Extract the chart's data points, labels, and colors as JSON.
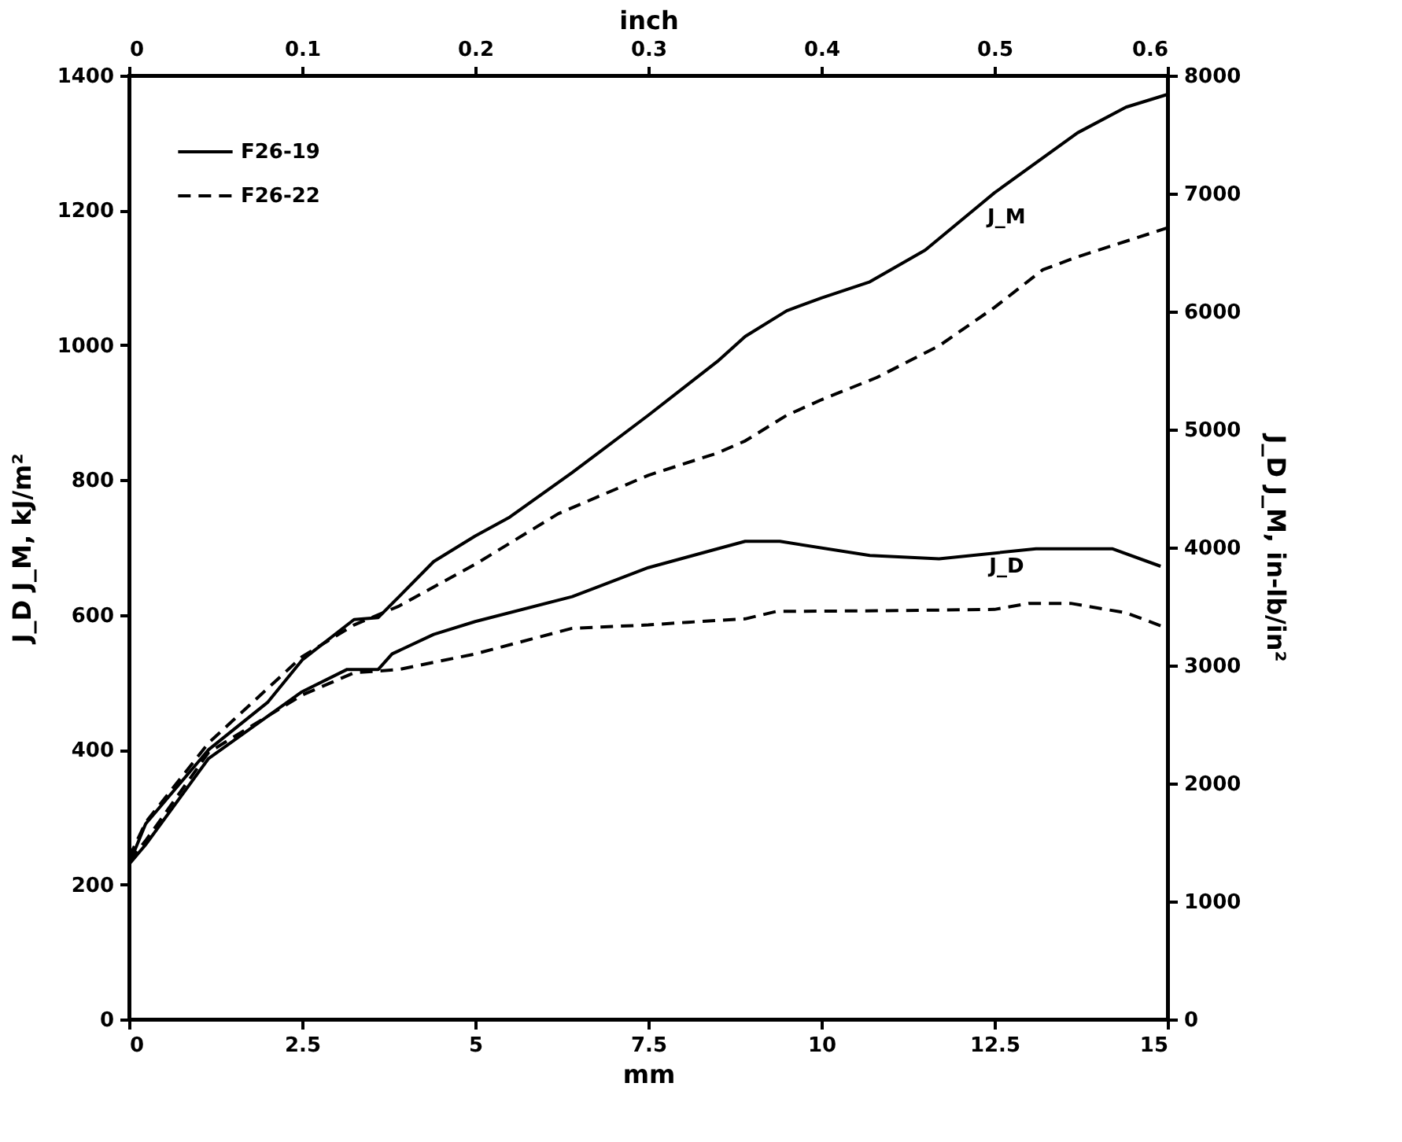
{
  "chart_data": {
    "type": "line",
    "xlabel": "mm",
    "x2label": "inch",
    "ylabel": "J_D J_M, kJ/m²",
    "y2label": "J_D J_M, in-lb/in²",
    "xlim": [
      0,
      15
    ],
    "xticks": [
      0,
      2.5,
      5,
      7.5,
      10,
      12.5,
      15
    ],
    "x2lim": [
      0,
      0.6
    ],
    "x2ticks": [
      0,
      0.1,
      0.2,
      0.3,
      0.4,
      0.5,
      0.6
    ],
    "ylim": [
      0,
      1400
    ],
    "yticks": [
      0,
      200,
      400,
      600,
      800,
      1000,
      1200,
      1400
    ],
    "y2lim": [
      0,
      8000
    ],
    "y2ticks": [
      0,
      1000,
      2000,
      3000,
      4000,
      5000,
      6000,
      7000,
      8000
    ],
    "grid": false,
    "legend": "top left",
    "marker": "none",
    "series": [
      {
        "name": "F26-19",
        "color": "#000000",
        "line_style": "solid",
        "x": [
          0,
          0.24,
          1.15,
          2.0,
          2.5,
          3.25,
          3.6,
          3.9,
          4.4,
          5,
          5.5,
          6.4,
          7.5,
          8.5,
          8.9,
          9.5,
          10,
          10.7,
          11.5,
          12.5,
          13.7,
          14.4,
          15
        ],
        "values": [
          230,
          290,
          400,
          470,
          533,
          593,
          596,
          627,
          679,
          717,
          745,
          811,
          896,
          976,
          1013,
          1051,
          1070,
          1094,
          1141,
          1226,
          1315,
          1353,
          1372
        ]
      },
      {
        "name": "F26-22",
        "color": "#000000",
        "line_style": "dashed",
        "x": [
          0,
          0.24,
          1.15,
          2.5,
          3.25,
          3.9,
          5,
          6.2,
          7.5,
          8.5,
          8.9,
          9.5,
          10,
          10.8,
          11.7,
          12.5,
          13.2,
          13.7,
          15
        ],
        "values": [
          240,
          292,
          410,
          538,
          585,
          613,
          675,
          750,
          807,
          840,
          858,
          896,
          919,
          952,
          999,
          1056,
          1112,
          1131,
          1174
        ]
      },
      {
        "color": "#000000",
        "line_style": "solid",
        "x": [
          0,
          0.24,
          1.15,
          2.5,
          3.15,
          3.6,
          3.8,
          4.4,
          5,
          6.4,
          7.5,
          8.5,
          8.9,
          9.4,
          10.7,
          11.7,
          13.1,
          14.2,
          14.9
        ],
        "values": [
          230,
          259,
          387,
          486,
          519,
          519,
          542,
          571,
          590,
          627,
          670,
          698,
          709,
          709,
          688,
          683,
          698,
          698,
          672
        ]
      },
      {
        "color": "#000000",
        "line_style": "dashed",
        "x": [
          0,
          0.24,
          1.15,
          2.5,
          3.25,
          3.9,
          5,
          6.4,
          7.5,
          8.07,
          8.9,
          9.35,
          10.8,
          12.5,
          13.0,
          13.6,
          14.4,
          15
        ],
        "values": [
          235,
          265,
          396,
          481,
          514,
          519,
          542,
          580,
          585,
          589,
          594,
          605,
          606,
          608,
          617,
          617,
          603,
          580
        ]
      }
    ],
    "annotations": [
      "J_M",
      "J_D"
    ]
  }
}
